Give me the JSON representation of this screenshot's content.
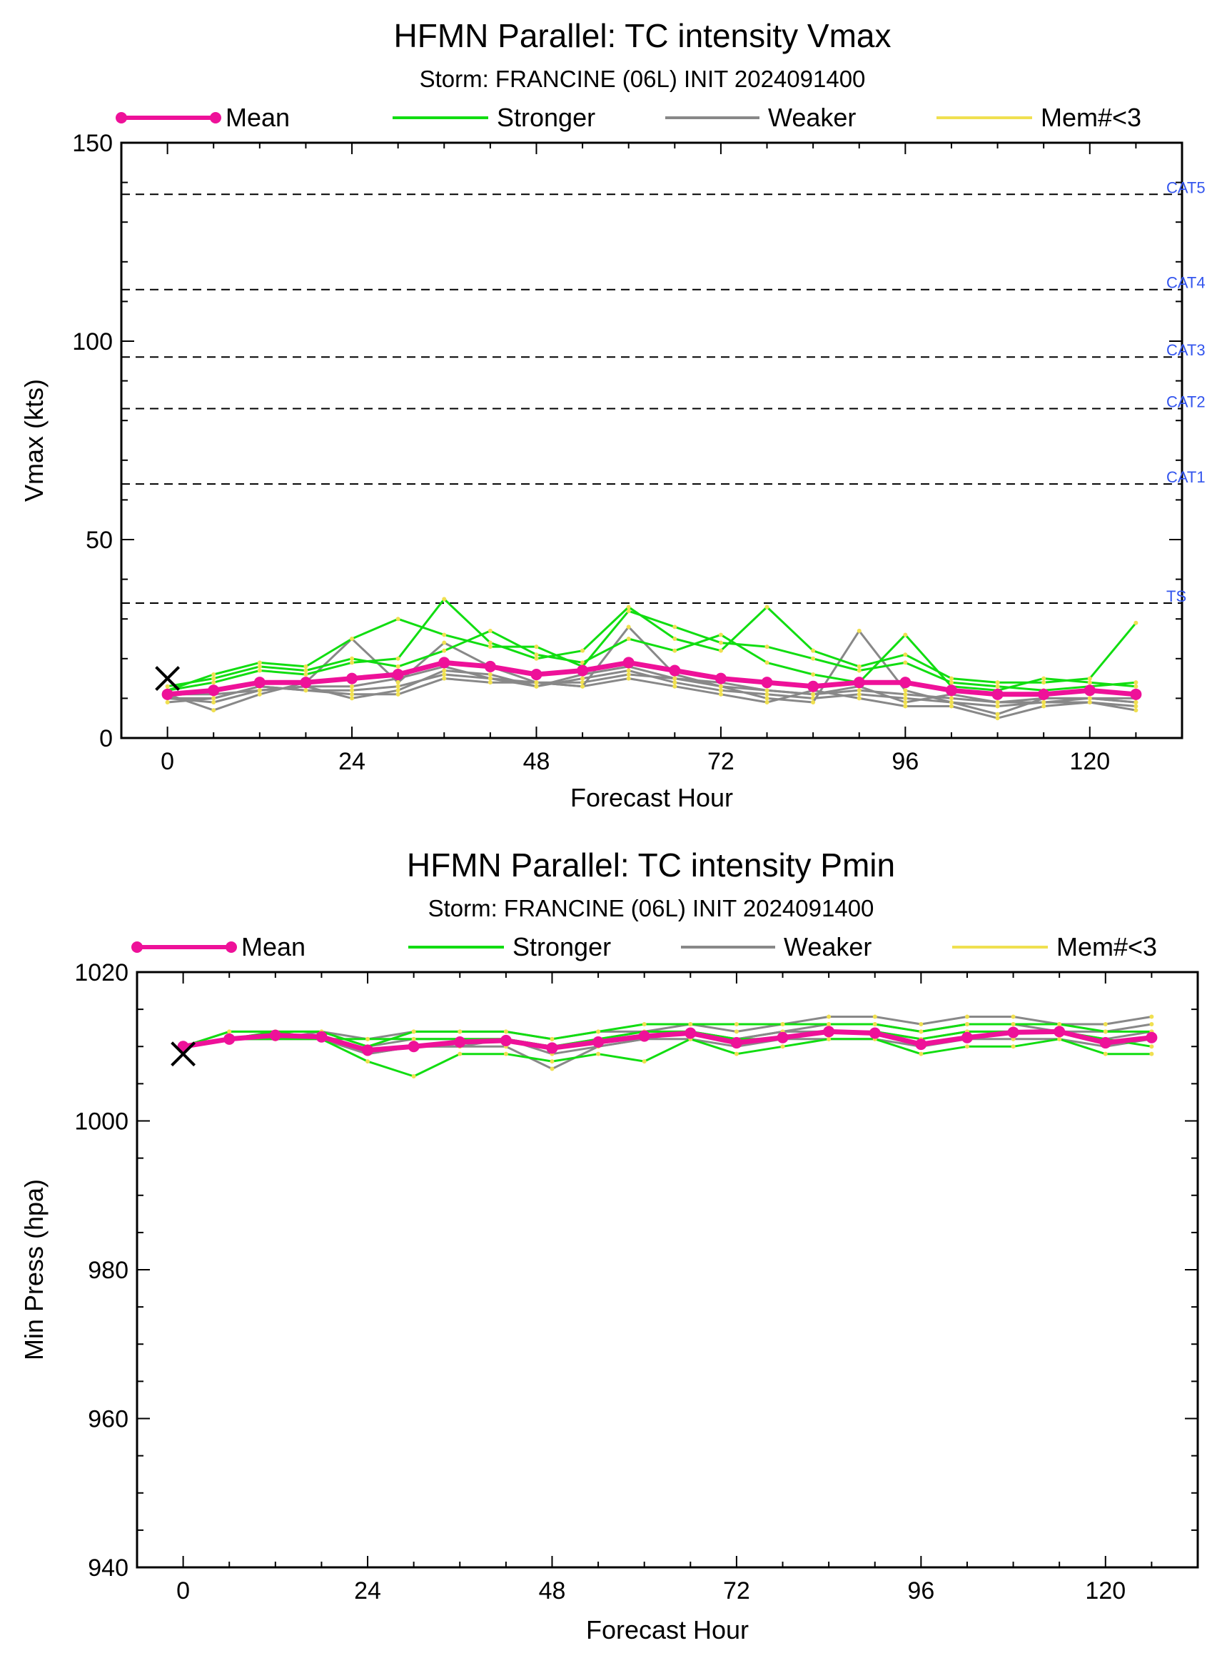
{
  "colors": {
    "mean": "#ee1199",
    "stronger": "#11dd11",
    "weaker": "#888888",
    "mem_lt3": "#f0e050",
    "ref_label": "#3355ee"
  },
  "legend": {
    "mean": "Mean",
    "stronger": "Stronger",
    "weaker": "Weaker",
    "mem_lt3": "Mem#<3"
  },
  "chart_data": [
    {
      "type": "line",
      "title": "HFMN Parallel: TC intensity Vmax",
      "subtitle": "Storm: FRANCINE (06L) INIT 2024091400",
      "xlabel": "Forecast Hour",
      "ylabel": "Vmax (kts)",
      "xlim": [
        -6,
        132
      ],
      "ylim": [
        0,
        150
      ],
      "xticks": [
        0,
        24,
        48,
        72,
        96,
        120
      ],
      "yticks": [
        0,
        50,
        100,
        150
      ],
      "initial_obs": {
        "x": 0,
        "y": 15
      },
      "reference_lines": [
        {
          "label": "CAT5",
          "y": 137
        },
        {
          "label": "CAT4",
          "y": 113
        },
        {
          "label": "CAT3",
          "y": 96
        },
        {
          "label": "CAT2",
          "y": 83
        },
        {
          "label": "CAT1",
          "y": 64
        },
        {
          "label": "TS",
          "y": 34
        }
      ],
      "x": [
        0,
        6,
        12,
        18,
        24,
        30,
        36,
        42,
        48,
        54,
        60,
        66,
        72,
        78,
        84,
        90,
        96,
        102,
        108,
        114,
        120,
        126
      ],
      "mean": [
        11,
        12,
        14,
        14,
        15,
        16,
        19,
        18,
        16,
        17,
        19,
        17,
        15,
        14,
        13,
        14,
        14,
        12,
        11,
        11,
        12,
        11
      ],
      "stronger": [
        [
          12,
          14,
          17,
          16,
          19,
          20,
          35,
          24,
          20,
          22,
          33,
          25,
          22,
          33,
          22,
          18,
          21,
          15,
          14,
          14,
          15,
          29
        ],
        [
          13,
          15,
          18,
          17,
          20,
          18,
          22,
          27,
          21,
          19,
          25,
          22,
          26,
          19,
          16,
          14,
          26,
          13,
          12,
          15,
          14,
          13
        ],
        [
          12,
          16,
          19,
          18,
          25,
          30,
          26,
          23,
          23,
          18,
          32,
          28,
          24,
          23,
          20,
          17,
          19,
          14,
          13,
          12,
          13,
          14
        ]
      ],
      "weaker": [
        [
          10,
          10,
          13,
          12,
          12,
          13,
          16,
          15,
          14,
          14,
          16,
          15,
          13,
          12,
          11,
          12,
          11,
          10,
          9,
          9,
          10,
          9
        ],
        [
          10,
          9,
          12,
          13,
          10,
          12,
          17,
          16,
          13,
          15,
          17,
          14,
          12,
          11,
          10,
          11,
          10,
          9,
          8,
          9,
          9,
          8
        ],
        [
          11,
          7,
          11,
          14,
          25,
          14,
          24,
          18,
          14,
          13,
          28,
          16,
          13,
          10,
          9,
          27,
          12,
          9,
          6,
          10,
          10,
          10
        ],
        [
          9,
          10,
          13,
          12,
          11,
          11,
          15,
          14,
          14,
          13,
          15,
          13,
          11,
          9,
          12,
          10,
          8,
          8,
          5,
          8,
          9,
          7
        ],
        [
          11,
          11,
          12,
          13,
          13,
          15,
          18,
          15,
          13,
          16,
          18,
          15,
          14,
          12,
          11,
          13,
          9,
          11,
          9,
          10,
          10,
          9
        ]
      ]
    },
    {
      "type": "line",
      "title": "HFMN Parallel: TC intensity Pmin",
      "subtitle": "Storm: FRANCINE (06L) INIT 2024091400",
      "xlabel": "Forecast Hour",
      "ylabel": "Min Press (hpa)",
      "xlim": [
        -6,
        132
      ],
      "ylim": [
        940,
        1020
      ],
      "xticks": [
        0,
        24,
        48,
        72,
        96,
        120
      ],
      "yticks": [
        940,
        960,
        980,
        1000,
        1020
      ],
      "initial_obs": {
        "x": 0,
        "y": 1009
      },
      "x": [
        0,
        6,
        12,
        18,
        24,
        30,
        36,
        42,
        48,
        54,
        60,
        66,
        72,
        78,
        84,
        90,
        96,
        102,
        108,
        114,
        120,
        126
      ],
      "mean": [
        1010,
        1011,
        1011.5,
        1011.3,
        1009.5,
        1010,
        1010.6,
        1010.8,
        1009.8,
        1010.6,
        1011.4,
        1011.8,
        1010.5,
        1011.2,
        1012,
        1011.8,
        1010.3,
        1011.2,
        1011.9,
        1012,
        1010.5,
        1011.2
      ],
      "stronger": [
        [
          1010,
          1011,
          1011,
          1011,
          1008,
          1006,
          1009,
          1009,
          1008,
          1009,
          1008,
          1011,
          1009,
          1010,
          1011,
          1011,
          1009,
          1010,
          1010,
          1011,
          1009,
          1009
        ],
        [
          1010,
          1011,
          1012,
          1012,
          1010,
          1012,
          1012,
          1012,
          1011,
          1012,
          1013,
          1013,
          1013,
          1013,
          1013,
          1013,
          1012,
          1013,
          1013,
          1013,
          1012,
          1012
        ],
        [
          1010,
          1012,
          1012,
          1011,
          1011,
          1011,
          1011,
          1011,
          1010,
          1011,
          1012,
          1012,
          1011,
          1011,
          1012,
          1012,
          1011,
          1012,
          1012,
          1012,
          1011,
          1010
        ]
      ],
      "weaker": [
        [
          1010,
          1012,
          1012,
          1012,
          1011,
          1012,
          1012,
          1012,
          1011,
          1012,
          1012,
          1013,
          1012,
          1013,
          1014,
          1014,
          1013,
          1014,
          1014,
          1013,
          1013,
          1014
        ],
        [
          1010,
          1011,
          1011,
          1011,
          1009,
          1010,
          1010,
          1010,
          1007,
          1010,
          1011,
          1012,
          1011,
          1012,
          1013,
          1013,
          1012,
          1013,
          1013,
          1012,
          1012,
          1013
        ],
        [
          1010,
          1011,
          1011,
          1012,
          1010,
          1011,
          1011,
          1011,
          1010,
          1011,
          1012,
          1012,
          1011,
          1012,
          1012,
          1012,
          1011,
          1012,
          1012,
          1012,
          1011,
          1012
        ],
        [
          1010,
          1011,
          1012,
          1011,
          1009,
          1010,
          1010,
          1011,
          1009,
          1010,
          1011,
          1011,
          1010,
          1011,
          1011,
          1011,
          1010,
          1011,
          1011,
          1011,
          1010,
          1011
        ]
      ]
    }
  ]
}
